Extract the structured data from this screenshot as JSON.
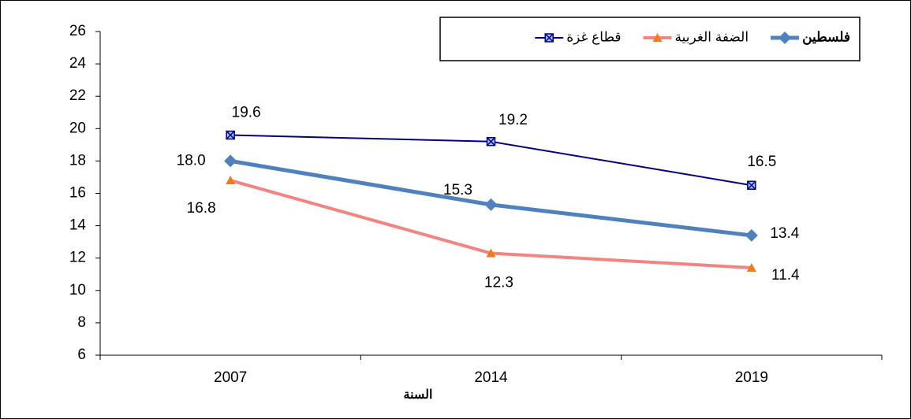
{
  "chart_data": {
    "type": "line",
    "x_label": "السنة",
    "categories": [
      "2007",
      "2014",
      "2019"
    ],
    "series": [
      {
        "name": "فلسطين",
        "color": "#4f81bd",
        "marker": "diamond",
        "values": [
          18.0,
          15.3,
          13.4
        ],
        "value_labels": [
          "18.0",
          "15.3",
          "13.4"
        ]
      },
      {
        "name": "الضفة الغربية",
        "color": "#f28482",
        "marker": "triangle",
        "values": [
          16.8,
          12.3,
          11.4
        ],
        "value_labels": [
          "16.8",
          "12.3",
          "11.4"
        ]
      },
      {
        "name": "قطاع غزة",
        "color": "#000080",
        "marker": "square-x",
        "values": [
          19.6,
          19.2,
          16.5
        ],
        "value_labels": [
          "19.6",
          "19.2",
          "16.5"
        ]
      }
    ],
    "ylim": [
      6,
      26
    ],
    "yticks": [
      6,
      8,
      10,
      12,
      14,
      16,
      18,
      20,
      22,
      24,
      26
    ],
    "legend": "top-right"
  }
}
